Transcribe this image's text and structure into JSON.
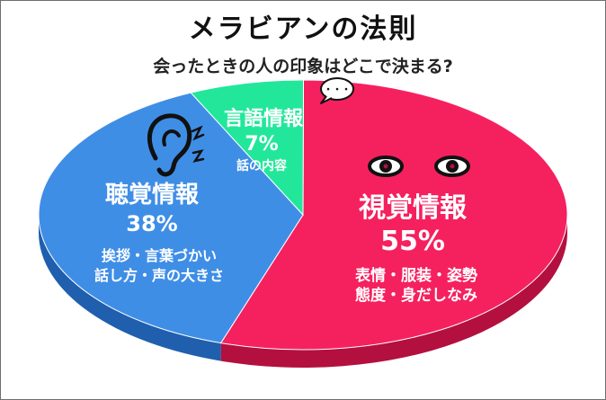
{
  "title": "メラビアンの法則",
  "subtitle": "会ったときの人の印象はどこで決まる?",
  "chart_data": {
    "type": "pie",
    "title": "メラビアンの法則",
    "subtitle": "会ったときの人の印象はどこで決まる?",
    "slices": [
      {
        "name": "視覚情報",
        "value": 55,
        "value_label": "55%",
        "description_lines": [
          "表情・服装・姿勢",
          "態度・身だしなみ"
        ],
        "color": "#f5215f",
        "side_color": "#b3103f"
      },
      {
        "name": "聴覚情報",
        "value": 38,
        "value_label": "38%",
        "description_lines": [
          "挨拶・言葉づかい",
          "話し方・声の大きさ"
        ],
        "color": "#3f8ee6",
        "side_color": "#1f5fae"
      },
      {
        "name": "言語情報",
        "value": 7,
        "value_label": "7%",
        "description_lines": [
          "話の内容"
        ],
        "color": "#22e79a",
        "side_color": "#12a86e"
      }
    ],
    "icons": [
      "eyes-icon",
      "ear-icon",
      "speech-bubble-icon"
    ],
    "speech_bubble_text": "・・・"
  }
}
